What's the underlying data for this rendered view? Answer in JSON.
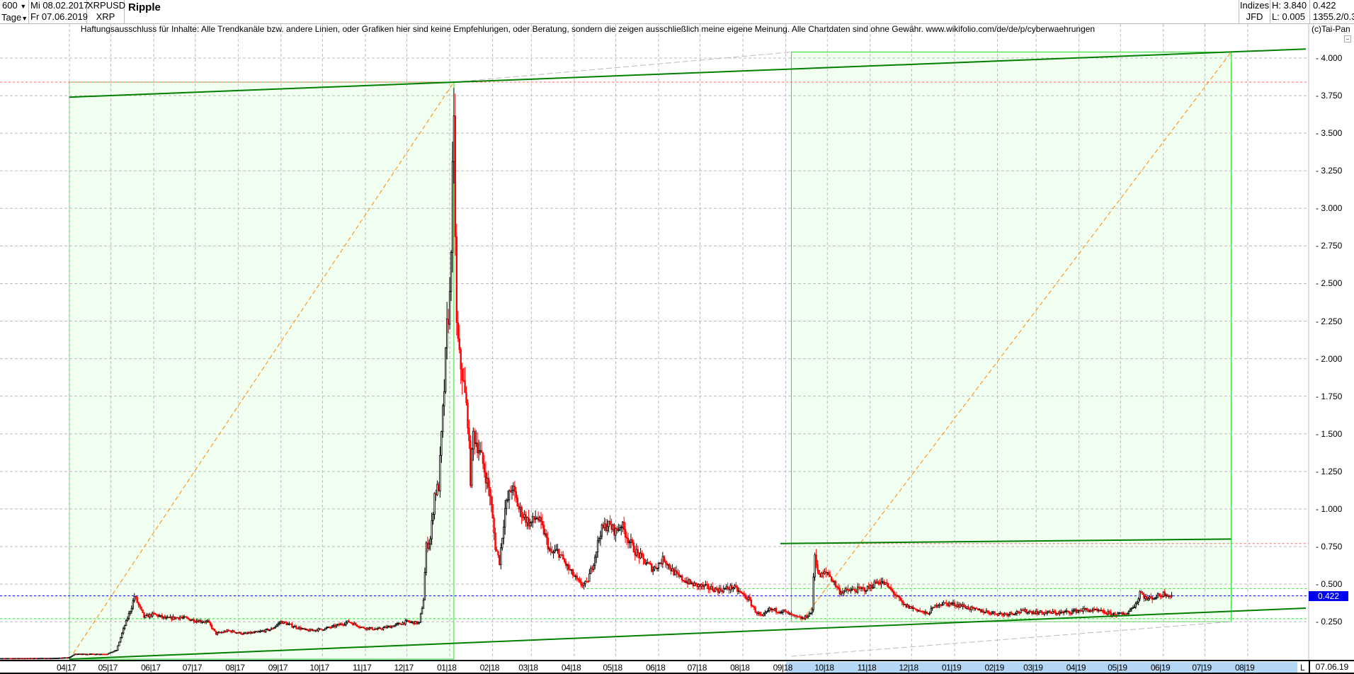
{
  "header": {
    "count": "600",
    "period": "Tage",
    "date_from": "Mi 08.02.2017",
    "date_to": "Fr 07.06.2019",
    "symbol": "XRPUSD",
    "symbol_short": "XRP",
    "name": "Ripple",
    "exchange_group": "Indizes",
    "exchange": "JFD",
    "high": "H: 3.840",
    "low": "L: 0.005",
    "last": "0.422",
    "extra": "1355.2/0.3"
  },
  "disclaimer": "Haftungsausschluss für Inhalte: Alle Trendkanäle bzw. andere Linien, oder Grafiken hier sind keine Empfehlungen, oder Beratung, sondern die zeigen ausschließlich meine eigene Meinung. Alle Chartdaten sind ohne Gewähr.  www.wikifolio.com/de/de/p/cyberwaehrungen",
  "copyright": "(c)Tai-Pan",
  "footer": {
    "marker": "L",
    "end_date": "07.06.19"
  },
  "colors": {
    "up": "#000000",
    "down": "#ff0000",
    "trend": "#008000",
    "box": "#33dd33",
    "box_fill": "#f0fff0",
    "diag": "#ff8800",
    "current": "#0000ee",
    "band": "#b5d7f7"
  },
  "chart_data": {
    "type": "candlestick",
    "title": "Ripple",
    "x_range": [
      "2017-02-08",
      "2019-09-15"
    ],
    "ylim": [
      0,
      4.15
    ],
    "grid": true,
    "y_ticks": [
      "0.250",
      "0.500",
      "0.750",
      "1.000",
      "1.250",
      "1.500",
      "1.750",
      "2.000",
      "2.250",
      "2.500",
      "2.750",
      "3.000",
      "3.250",
      "3.500",
      "3.750",
      "4.000"
    ],
    "x_ticks": [
      {
        "date": "2017-04-01",
        "label": "04|17"
      },
      {
        "date": "2017-05-01",
        "label": "05|17"
      },
      {
        "date": "2017-06-01",
        "label": "06|17"
      },
      {
        "date": "2017-07-01",
        "label": "07|17"
      },
      {
        "date": "2017-08-01",
        "label": "08|17"
      },
      {
        "date": "2017-09-01",
        "label": "09|17"
      },
      {
        "date": "2017-10-01",
        "label": "10|17"
      },
      {
        "date": "2017-11-01",
        "label": "11|17"
      },
      {
        "date": "2017-12-01",
        "label": "12|17"
      },
      {
        "date": "2018-01-01",
        "label": "01|18"
      },
      {
        "date": "2018-02-01",
        "label": "02|18"
      },
      {
        "date": "2018-03-01",
        "label": "03|18"
      },
      {
        "date": "2018-04-01",
        "label": "04|18"
      },
      {
        "date": "2018-05-01",
        "label": "05|18"
      },
      {
        "date": "2018-06-01",
        "label": "06|18"
      },
      {
        "date": "2018-07-01",
        "label": "07|18"
      },
      {
        "date": "2018-08-01",
        "label": "08|18"
      },
      {
        "date": "2018-09-01",
        "label": "09|18"
      },
      {
        "date": "2018-10-01",
        "label": "10|18"
      },
      {
        "date": "2018-11-01",
        "label": "11|18"
      },
      {
        "date": "2018-12-01",
        "label": "12|18"
      },
      {
        "date": "2019-01-01",
        "label": "01|19"
      },
      {
        "date": "2019-02-01",
        "label": "02|19"
      },
      {
        "date": "2019-03-01",
        "label": "03|19"
      },
      {
        "date": "2019-04-01",
        "label": "04|19"
      },
      {
        "date": "2019-05-01",
        "label": "05|19"
      },
      {
        "date": "2019-06-01",
        "label": "06|19"
      },
      {
        "date": "2019-07-01",
        "label": "07|19"
      },
      {
        "date": "2019-08-01",
        "label": "08|19"
      }
    ],
    "current_price": "0.422",
    "high": 3.84,
    "low": 0.005,
    "close_path": [
      [
        "2017-02-08",
        0.006
      ],
      [
        "2017-03-20",
        0.007
      ],
      [
        "2017-04-01",
        0.012
      ],
      [
        "2017-04-05",
        0.035
      ],
      [
        "2017-04-28",
        0.035
      ],
      [
        "2017-05-05",
        0.06
      ],
      [
        "2017-05-10",
        0.2
      ],
      [
        "2017-05-16",
        0.35
      ],
      [
        "2017-05-18",
        0.42
      ],
      [
        "2017-05-25",
        0.28
      ],
      [
        "2017-06-01",
        0.3
      ],
      [
        "2017-06-10",
        0.27
      ],
      [
        "2017-06-20",
        0.28
      ],
      [
        "2017-06-30",
        0.26
      ],
      [
        "2017-07-10",
        0.25
      ],
      [
        "2017-07-16",
        0.17
      ],
      [
        "2017-07-25",
        0.19
      ],
      [
        "2017-08-05",
        0.17
      ],
      [
        "2017-08-15",
        0.18
      ],
      [
        "2017-08-25",
        0.2
      ],
      [
        "2017-09-01",
        0.25
      ],
      [
        "2017-09-10",
        0.22
      ],
      [
        "2017-09-20",
        0.19
      ],
      [
        "2017-10-01",
        0.2
      ],
      [
        "2017-10-10",
        0.22
      ],
      [
        "2017-10-20",
        0.25
      ],
      [
        "2017-10-30",
        0.21
      ],
      [
        "2017-11-10",
        0.2
      ],
      [
        "2017-11-20",
        0.22
      ],
      [
        "2017-12-01",
        0.25
      ],
      [
        "2017-12-10",
        0.24
      ],
      [
        "2017-12-13",
        0.4
      ],
      [
        "2017-12-15",
        0.75
      ],
      [
        "2017-12-18",
        0.8
      ],
      [
        "2017-12-21",
        1.1
      ],
      [
        "2017-12-24",
        1.15
      ],
      [
        "2017-12-28",
        1.8
      ],
      [
        "2017-12-30",
        2.2
      ],
      [
        "2018-01-01",
        2.4
      ],
      [
        "2018-01-03",
        3.2
      ],
      [
        "2018-01-04",
        3.5
      ],
      [
        "2018-01-06",
        2.2
      ],
      [
        "2018-01-08",
        2.0
      ],
      [
        "2018-01-10",
        1.9
      ],
      [
        "2018-01-14",
        1.6
      ],
      [
        "2018-01-16",
        1.2
      ],
      [
        "2018-01-18",
        1.5
      ],
      [
        "2018-01-22",
        1.4
      ],
      [
        "2018-01-25",
        1.3
      ],
      [
        "2018-01-30",
        1.1
      ],
      [
        "2018-02-03",
        0.75
      ],
      [
        "2018-02-06",
        0.65
      ],
      [
        "2018-02-10",
        1.0
      ],
      [
        "2018-02-15",
        1.15
      ],
      [
        "2018-02-20",
        1.0
      ],
      [
        "2018-02-28",
        0.9
      ],
      [
        "2018-03-05",
        0.95
      ],
      [
        "2018-03-10",
        0.85
      ],
      [
        "2018-03-15",
        0.7
      ],
      [
        "2018-03-20",
        0.72
      ],
      [
        "2018-03-28",
        0.6
      ],
      [
        "2018-04-05",
        0.5
      ],
      [
        "2018-04-10",
        0.5
      ],
      [
        "2018-04-15",
        0.65
      ],
      [
        "2018-04-20",
        0.85
      ],
      [
        "2018-04-25",
        0.9
      ],
      [
        "2018-05-01",
        0.85
      ],
      [
        "2018-05-05",
        0.9
      ],
      [
        "2018-05-10",
        0.8
      ],
      [
        "2018-05-15",
        0.72
      ],
      [
        "2018-05-22",
        0.65
      ],
      [
        "2018-05-28",
        0.6
      ],
      [
        "2018-06-05",
        0.67
      ],
      [
        "2018-06-10",
        0.6
      ],
      [
        "2018-06-15",
        0.55
      ],
      [
        "2018-06-25",
        0.5
      ],
      [
        "2018-07-05",
        0.48
      ],
      [
        "2018-07-15",
        0.46
      ],
      [
        "2018-07-25",
        0.48
      ],
      [
        "2018-08-05",
        0.4
      ],
      [
        "2018-08-10",
        0.32
      ],
      [
        "2018-08-15",
        0.28
      ],
      [
        "2018-08-20",
        0.33
      ],
      [
        "2018-08-30",
        0.32
      ],
      [
        "2018-09-08",
        0.28
      ],
      [
        "2018-09-14",
        0.27
      ],
      [
        "2018-09-20",
        0.32
      ],
      [
        "2018-09-21",
        0.55
      ],
      [
        "2018-09-22",
        0.7
      ],
      [
        "2018-09-25",
        0.55
      ],
      [
        "2018-10-01",
        0.58
      ],
      [
        "2018-10-10",
        0.45
      ],
      [
        "2018-10-20",
        0.46
      ],
      [
        "2018-10-30",
        0.47
      ],
      [
        "2018-11-07",
        0.52
      ],
      [
        "2018-11-12",
        0.5
      ],
      [
        "2018-11-20",
        0.42
      ],
      [
        "2018-11-25",
        0.36
      ],
      [
        "2018-12-05",
        0.33
      ],
      [
        "2018-12-12",
        0.3
      ],
      [
        "2018-12-20",
        0.37
      ],
      [
        "2018-12-28",
        0.37
      ],
      [
        "2019-01-05",
        0.36
      ],
      [
        "2019-01-15",
        0.33
      ],
      [
        "2019-01-28",
        0.31
      ],
      [
        "2019-02-05",
        0.3
      ],
      [
        "2019-02-20",
        0.32
      ],
      [
        "2019-03-05",
        0.31
      ],
      [
        "2019-03-20",
        0.31
      ],
      [
        "2019-04-05",
        0.33
      ],
      [
        "2019-04-15",
        0.32
      ],
      [
        "2019-04-25",
        0.3
      ],
      [
        "2019-05-05",
        0.3
      ],
      [
        "2019-05-13",
        0.38
      ],
      [
        "2019-05-15",
        0.45
      ],
      [
        "2019-05-20",
        0.4
      ],
      [
        "2019-05-28",
        0.42
      ],
      [
        "2019-06-02",
        0.44
      ],
      [
        "2019-06-07",
        0.422
      ]
    ],
    "drawings": {
      "horizontal_levels": [
        {
          "price": 3.84,
          "color": "#ff6666"
        },
        {
          "price": 0.77,
          "color": "#ff6666",
          "from": "2018-09-22"
        },
        {
          "price": 0.422,
          "color": "#0000ee"
        },
        {
          "price": 0.47,
          "color": "#33dd33",
          "from": "2018-04-10"
        },
        {
          "price": 0.27,
          "color": "#33dd33"
        }
      ],
      "boxes": [
        {
          "from": "2017-04-01",
          "to": "2018-01-04",
          "low": 0.0,
          "high": 3.84
        },
        {
          "from": "2018-09-05",
          "to": "2019-07-20",
          "low": 0.25,
          "high": 4.04
        }
      ],
      "trend_lines": [
        {
          "from": [
            "2017-04-01",
            3.74
          ],
          "to": [
            "2019-09-12",
            4.06
          ]
        },
        {
          "from": [
            "2017-04-01",
            0.0
          ],
          "to": [
            "2019-09-12",
            0.34
          ]
        },
        {
          "from": [
            "2018-08-28",
            0.77
          ],
          "to": [
            "2019-07-20",
            0.8
          ]
        }
      ],
      "diagonals": [
        {
          "from": [
            "2017-04-01",
            0.0
          ],
          "to": [
            "2018-01-04",
            3.84
          ]
        },
        {
          "from": [
            "2018-09-12",
            0.25
          ],
          "to": [
            "2019-07-20",
            4.04
          ]
        }
      ]
    }
  }
}
